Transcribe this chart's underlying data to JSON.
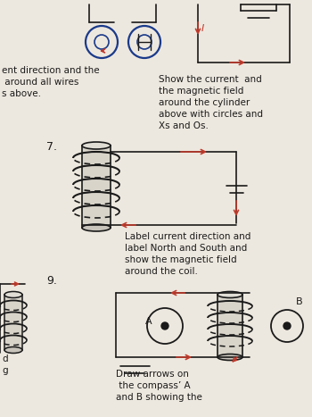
{
  "bg_color": "#ede8df",
  "red_color": "#c0392b",
  "blue_color": "#1a3a8a",
  "dark_color": "#1a1a1a",
  "top_left_text": [
    "ent direction and the",
    " around all wires",
    "s above."
  ],
  "top_right_text": [
    "Show the current  and",
    "the magnetic field",
    "around the cylinder",
    "above with circles and",
    "Xs and Os."
  ],
  "label_7": "7.",
  "label_9": "9.",
  "instruction_7": [
    "Label current direction and",
    "label North and South and",
    "show the magnetic field",
    "around the coil."
  ],
  "instruction_9": [
    "Draw arrows on",
    " the compass’ A",
    "and B showing the"
  ]
}
